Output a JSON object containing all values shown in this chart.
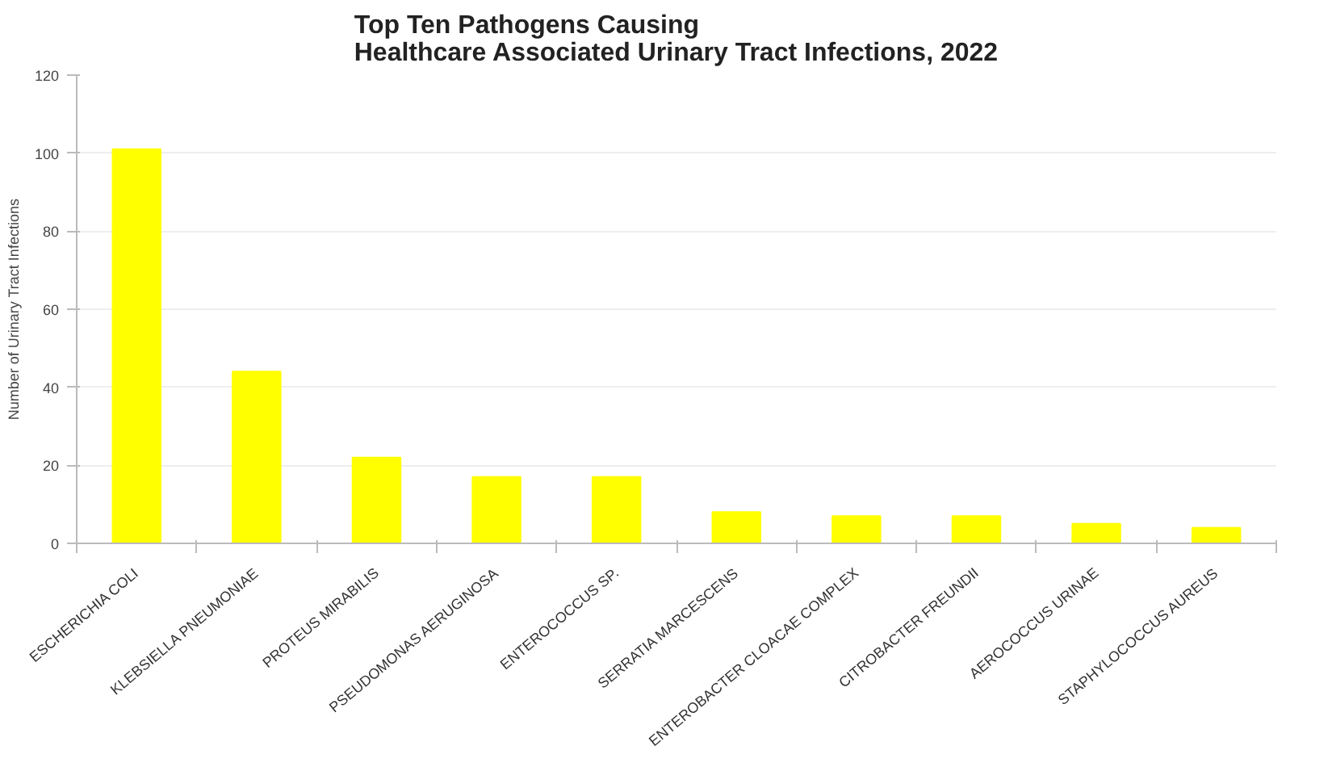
{
  "chart_data": {
    "type": "bar",
    "title": "Top Ten Pathogens Causing\nHealthcare Associated Urinary Tract Infections, 2022",
    "ylabel": "Number of Urinary Tract Infections",
    "categories": [
      "ESCHERICHIA COLI",
      "KLEBSIELLA PNEUMONIAE",
      "PROTEUS MIRABILIS",
      "PSEUDOMONAS AERUGINOSA",
      "ENTEROCOCCUS SP.",
      "SERRATIA MARCESCENS",
      "ENTEROBACTER CLOACAE COMPLEX",
      "CITROBACTER FREUNDII",
      "AEROCOCCUS URINAE",
      "STAPHYLOCOCCUS AUREUS"
    ],
    "values": [
      101,
      44,
      22,
      17,
      17,
      8,
      7,
      7,
      5,
      4
    ],
    "color": "#ffff00",
    "ylim": [
      0,
      120
    ],
    "yticks": [
      0,
      20,
      40,
      60,
      80,
      100,
      120
    ],
    "grid": "y"
  }
}
